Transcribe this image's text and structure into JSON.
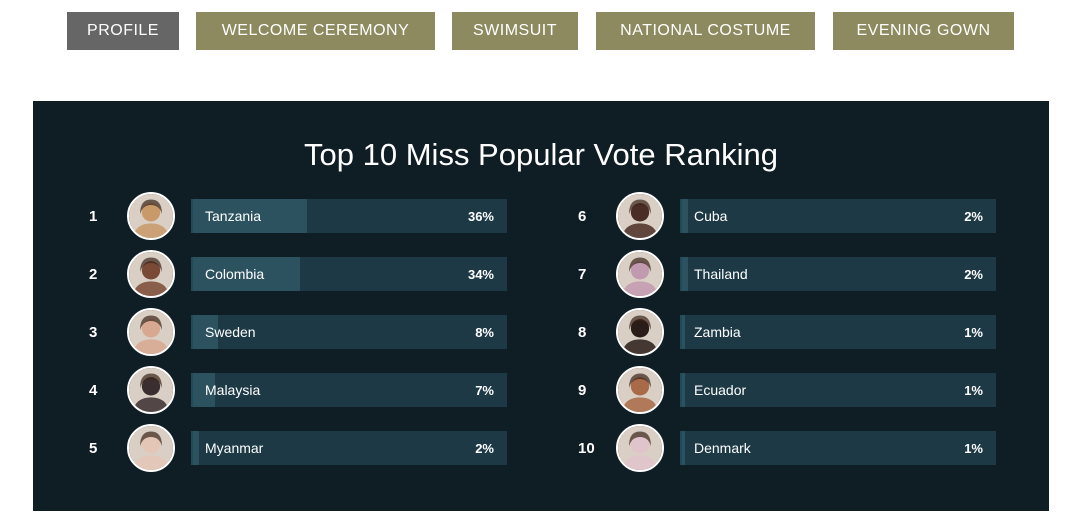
{
  "tabs": [
    {
      "label": "PROFILE",
      "active": true
    },
    {
      "label": "WELCOME CEREMONY",
      "active": false
    },
    {
      "label": "SWIMSUIT",
      "active": false
    },
    {
      "label": "NATIONAL COSTUME",
      "active": false
    },
    {
      "label": "EVENING GOWN",
      "active": false
    }
  ],
  "ranking": {
    "title": "Top 10 Miss Popular Vote Ranking",
    "entries": [
      {
        "rank": "1",
        "country": "Tanzania",
        "percent": "36%",
        "value": 36,
        "avatar_color": "#c89a6a"
      },
      {
        "rank": "2",
        "country": "Colombia",
        "percent": "34%",
        "value": 34,
        "avatar_color": "#7a4a36"
      },
      {
        "rank": "3",
        "country": "Sweden",
        "percent": "8%",
        "value": 8,
        "avatar_color": "#d8a890"
      },
      {
        "rank": "4",
        "country": "Malaysia",
        "percent": "7%",
        "value": 7,
        "avatar_color": "#3a2e30"
      },
      {
        "rank": "5",
        "country": "Myanmar",
        "percent": "2%",
        "value": 2,
        "avatar_color": "#e4c6b6"
      },
      {
        "rank": "6",
        "country": "Cuba",
        "percent": "2%",
        "value": 2,
        "avatar_color": "#4a2e26"
      },
      {
        "rank": "7",
        "country": "Thailand",
        "percent": "2%",
        "value": 2,
        "avatar_color": "#c29ab0"
      },
      {
        "rank": "8",
        "country": "Zambia",
        "percent": "1%",
        "value": 1,
        "avatar_color": "#2a1c18"
      },
      {
        "rank": "9",
        "country": "Ecuador",
        "percent": "1%",
        "value": 1,
        "avatar_color": "#a86a48"
      },
      {
        "rank": "10",
        "country": "Denmark",
        "percent": "1%",
        "value": 1,
        "avatar_color": "#e0c4cc"
      }
    ]
  },
  "colors": {
    "tab_active": "#666666",
    "tab_normal": "#8c8a5e",
    "panel_bg": "#0f1d24",
    "bar_bg": "#1c3945",
    "bar_fill": "#2c5260"
  }
}
